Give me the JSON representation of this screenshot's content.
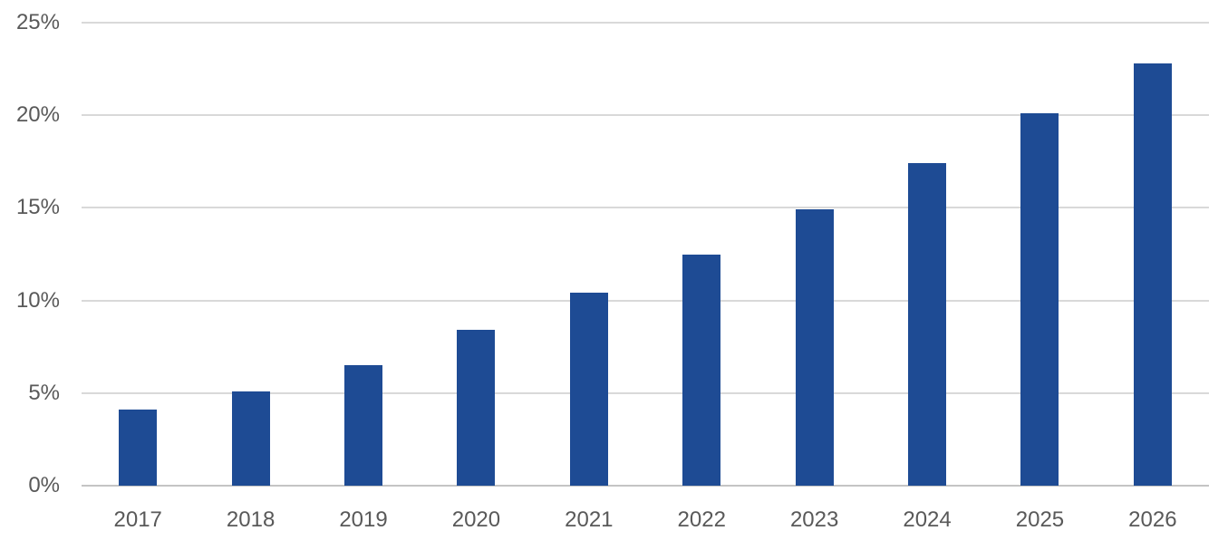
{
  "chart_data": {
    "type": "bar",
    "title": "",
    "xlabel": "",
    "ylabel": "",
    "categories": [
      "2017",
      "2018",
      "2019",
      "2020",
      "2021",
      "2022",
      "2023",
      "2024",
      "2025",
      "2026"
    ],
    "values": [
      4.1,
      5.1,
      6.5,
      8.4,
      10.4,
      12.5,
      14.9,
      17.4,
      20.1,
      22.8
    ],
    "value_unit": "%",
    "ylim": [
      0,
      25
    ],
    "yticks": [
      0,
      5,
      10,
      15,
      20,
      25
    ],
    "ytick_labels": [
      "0%",
      "5%",
      "10%",
      "15%",
      "20%",
      "25%"
    ],
    "grid": "horizontal",
    "legend": false,
    "colors": {
      "bar": "#1E4B94",
      "gridline": "#D9D9D9",
      "baseline": "#C4C4C4",
      "tick_label": "#595959",
      "background": "#FFFFFF"
    }
  }
}
